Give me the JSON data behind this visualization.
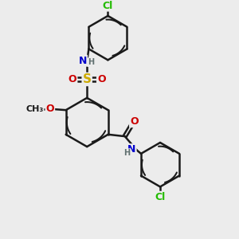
{
  "bg_color": "#ececec",
  "bond_color": "#1a1a1a",
  "bond_width": 1.8,
  "atom_colors": {
    "N": "#0000cc",
    "O": "#cc0000",
    "S": "#ccaa00",
    "Cl": "#22bb00",
    "H": "#607070",
    "C": "#1a1a1a"
  },
  "font_size": 9,
  "small_font": 7
}
